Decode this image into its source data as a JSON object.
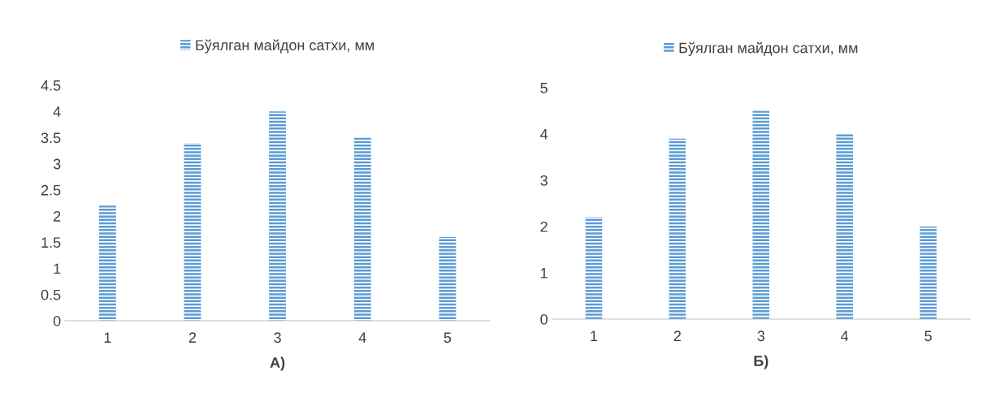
{
  "chart_data": [
    {
      "type": "bar",
      "xlabel": "А)",
      "categories": [
        "1",
        "2",
        "3",
        "4",
        "5"
      ],
      "series": [
        {
          "name": "Бўялган майдон сатхи, мм",
          "color": "#5b9bd5",
          "values": [
            2.2,
            3.4,
            4.0,
            3.5,
            1.6
          ]
        }
      ],
      "ylim": [
        0,
        4.5
      ],
      "yticks": [
        0,
        0.5,
        1,
        1.5,
        2,
        2.5,
        3,
        3.5,
        4,
        4.5
      ],
      "grid": false,
      "legend": "top"
    },
    {
      "type": "bar",
      "xlabel": "Б)",
      "categories": [
        "1",
        "2",
        "3",
        "4",
        "5"
      ],
      "series": [
        {
          "name": "Бўялган майдон сатхи, мм",
          "color": "#5b9bd5",
          "values": [
            2.2,
            3.9,
            4.5,
            4.0,
            2.0
          ]
        }
      ],
      "ylim": [
        0,
        5
      ],
      "yticks": [
        0,
        1,
        2,
        3,
        4,
        5
      ],
      "grid": false,
      "legend": "top"
    }
  ]
}
